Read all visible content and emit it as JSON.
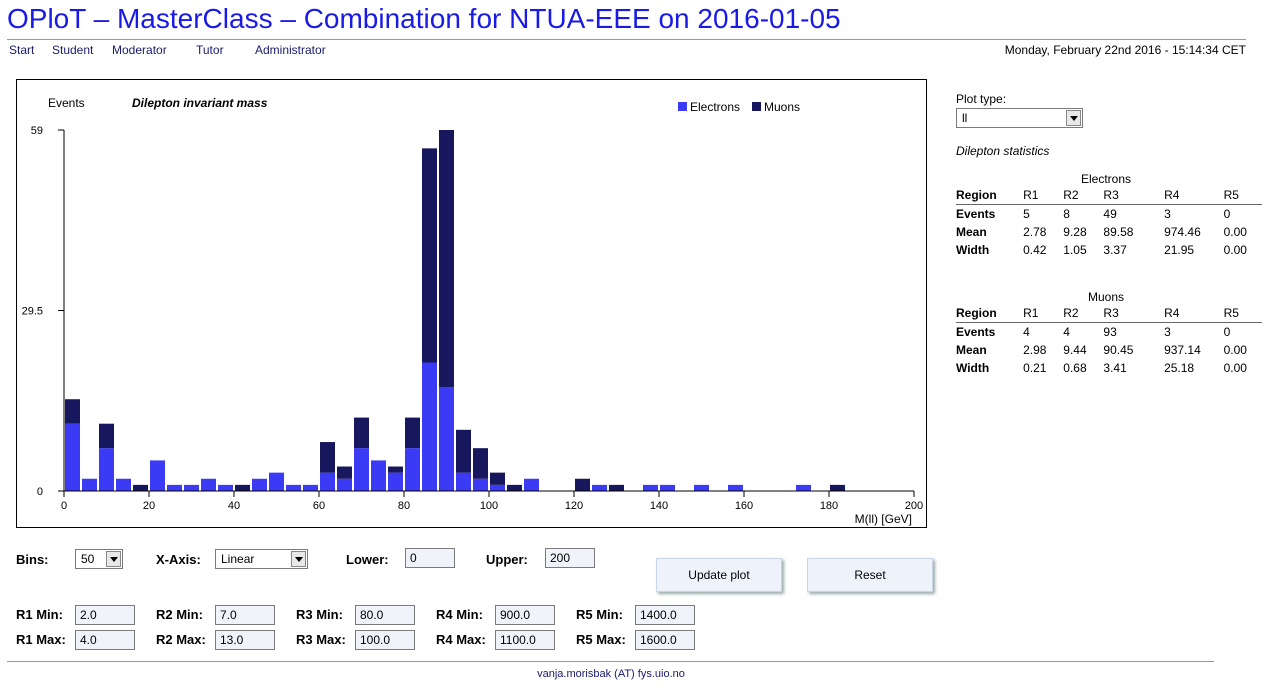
{
  "header": {
    "title": "OPloT – MasterClass – Combination for NTUA-EEE on 2016-01-05",
    "datetime": "Monday, February 22nd 2016 - 15:14:34 CET"
  },
  "nav": [
    "Start",
    "Student",
    "Moderator",
    "Tutor",
    "Administrator"
  ],
  "plot": {
    "ylabel": "Events",
    "title": "Dilepton invariant mass",
    "xlabel": "M(ll) [GeV]"
  },
  "chart_data": {
    "type": "bar",
    "stacked": true,
    "title": "Dilepton invariant mass",
    "xlabel": "M(ll) [GeV]",
    "ylabel": "Events",
    "xlim": [
      0,
      200
    ],
    "ylim": [
      0,
      59
    ],
    "bin_width": 4,
    "x_ticks": [
      0,
      20,
      40,
      60,
      80,
      100,
      120,
      140,
      160,
      180,
      200
    ],
    "y_ticks": [
      0,
      29.5,
      59
    ],
    "y_tick_labels": [
      "0",
      "29.5",
      "59"
    ],
    "legend_position": "top-right",
    "x": [
      0,
      4,
      8,
      12,
      16,
      20,
      24,
      28,
      32,
      36,
      40,
      44,
      48,
      52,
      56,
      60,
      64,
      68,
      72,
      76,
      80,
      84,
      88,
      92,
      96,
      100,
      104,
      108,
      112,
      116,
      120,
      124,
      128,
      132,
      136,
      140,
      144,
      148,
      152,
      156,
      160,
      164,
      168,
      172,
      176,
      180,
      184,
      188,
      192,
      196
    ],
    "series": [
      {
        "name": "Electrons",
        "color": "#3b3bf5",
        "values": [
          11,
          2,
          7,
          2,
          0,
          5,
          1,
          1,
          2,
          1,
          0,
          2,
          3,
          1,
          1,
          3,
          2,
          7,
          5,
          3,
          7,
          21,
          17,
          3,
          2,
          1,
          0,
          2,
          0,
          0,
          0,
          1,
          0,
          0,
          1,
          1,
          0,
          1,
          0,
          1,
          0,
          0,
          0,
          1,
          0,
          0,
          0,
          0,
          0,
          0
        ]
      },
      {
        "name": "Muons",
        "color": "#17175e",
        "values": [
          4,
          0,
          4,
          0,
          1,
          0,
          0,
          0,
          0,
          0,
          1,
          0,
          0,
          0,
          0,
          5,
          2,
          5,
          0,
          1,
          5,
          35,
          42,
          7,
          5,
          2,
          1,
          0,
          0,
          0,
          2,
          0,
          1,
          0,
          0,
          0,
          0,
          0,
          0,
          0,
          0,
          0,
          0,
          0,
          0,
          1,
          0,
          0,
          0,
          0
        ]
      }
    ]
  },
  "sidebar": {
    "plot_type_label": "Plot type:",
    "plot_type_value": "ll",
    "stats_title": "Dilepton statistics",
    "tables": [
      {
        "caption": "Electrons",
        "header": [
          "Region",
          "R1",
          "R2",
          "R3",
          "R4",
          "R5"
        ],
        "rows": [
          [
            "Events",
            "5",
            "8",
            "49",
            "3",
            "0"
          ],
          [
            "Mean",
            "2.78",
            "9.28",
            "89.58",
            "974.46",
            "0.00"
          ],
          [
            "Width",
            "0.42",
            "1.05",
            "3.37",
            "21.95",
            "0.00"
          ]
        ]
      },
      {
        "caption": "Muons",
        "header": [
          "Region",
          "R1",
          "R2",
          "R3",
          "R4",
          "R5"
        ],
        "rows": [
          [
            "Events",
            "4",
            "4",
            "93",
            "3",
            "0"
          ],
          [
            "Mean",
            "2.98",
            "9.44",
            "90.45",
            "937.14",
            "0.00"
          ],
          [
            "Width",
            "0.21",
            "0.68",
            "3.41",
            "25.18",
            "0.00"
          ]
        ]
      }
    ]
  },
  "controls": {
    "bins_label": "Bins:",
    "bins_value": "50",
    "xaxis_label": "X-Axis:",
    "xaxis_value": "Linear",
    "lower_label": "Lower:",
    "lower_value": "0",
    "upper_label": "Upper:",
    "upper_value": "200",
    "update_button": "Update plot",
    "reset_button": "Reset",
    "regions": [
      {
        "min_label": "R1 Min:",
        "min_value": "2.0",
        "max_label": "R1 Max:",
        "max_value": "4.0"
      },
      {
        "min_label": "R2 Min:",
        "min_value": "7.0",
        "max_label": "R2 Max:",
        "max_value": "13.0"
      },
      {
        "min_label": "R3 Min:",
        "min_value": "80.0",
        "max_label": "R3 Max:",
        "max_value": "100.0"
      },
      {
        "min_label": "R4 Min:",
        "min_value": "900.0",
        "max_label": "R4 Max:",
        "max_value": "1100.0"
      },
      {
        "min_label": "R5 Min:",
        "min_value": "1400.0",
        "max_label": "R5 Max:",
        "max_value": "1600.0"
      }
    ]
  },
  "footer": {
    "contact": "vanja.morisbak (AT) fys.uio.no"
  }
}
